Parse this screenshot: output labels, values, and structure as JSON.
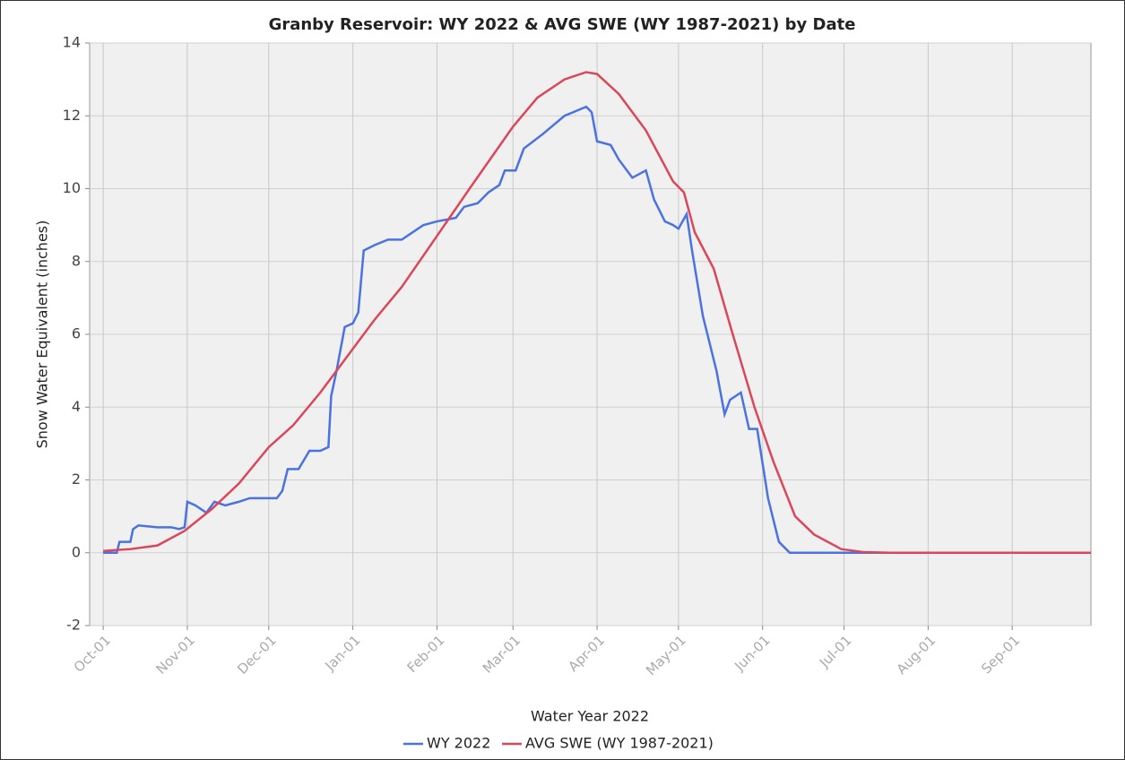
{
  "chart_data": {
    "type": "line",
    "title": "Granby Reservoir: WY 2022 & AVG SWE (WY 1987-2021) by Date",
    "xlabel": "Water Year 2022",
    "ylabel": "Snow Water Equivalent (inches)",
    "xlim": [
      -5,
      364
    ],
    "ylim": [
      -2,
      14
    ],
    "yticks": [
      -2,
      0,
      2,
      4,
      6,
      8,
      10,
      12,
      14
    ],
    "xticks": [
      {
        "value": 0,
        "label": "Oct-01"
      },
      {
        "value": 31,
        "label": "Nov-01"
      },
      {
        "value": 61,
        "label": "Dec-01"
      },
      {
        "value": 92,
        "label": "Jan-01"
      },
      {
        "value": 123,
        "label": "Feb-01"
      },
      {
        "value": 151,
        "label": "Mar-01"
      },
      {
        "value": 182,
        "label": "Apr-01"
      },
      {
        "value": 212,
        "label": "May-01"
      },
      {
        "value": 243,
        "label": "Jun-01"
      },
      {
        "value": 273,
        "label": "Jul-01"
      },
      {
        "value": 304,
        "label": "Aug-01"
      },
      {
        "value": 335,
        "label": "Sep-01"
      }
    ],
    "grid": true,
    "legend": "bottom",
    "series": [
      {
        "name": "WY 2022",
        "color": "#4a72e0",
        "x": [
          0,
          5,
          6,
          10,
          11,
          13,
          20,
          25,
          28,
          30,
          31,
          34,
          38,
          41,
          45,
          50,
          54,
          61,
          64,
          66,
          68,
          72,
          76,
          80,
          83,
          84,
          86,
          89,
          92,
          94,
          96,
          100,
          105,
          110,
          113,
          118,
          123,
          130,
          133,
          138,
          142,
          146,
          148,
          152,
          155,
          162,
          170,
          178,
          180,
          182,
          187,
          190,
          195,
          200,
          203,
          207,
          210,
          212,
          215,
          217,
          221,
          226,
          229,
          231,
          235,
          238,
          241,
          245,
          249,
          253,
          300,
          364
        ],
        "values": [
          0,
          0,
          0.3,
          0.3,
          0.65,
          0.75,
          0.7,
          0.7,
          0.65,
          0.7,
          1.4,
          1.3,
          1.1,
          1.4,
          1.3,
          1.4,
          1.5,
          1.5,
          1.5,
          1.7,
          2.3,
          2.3,
          2.8,
          2.8,
          2.9,
          4.3,
          5.0,
          6.2,
          6.3,
          6.6,
          8.3,
          8.45,
          8.6,
          8.6,
          8.75,
          9.0,
          9.1,
          9.2,
          9.5,
          9.6,
          9.9,
          10.1,
          10.5,
          10.5,
          11.1,
          11.5,
          12.0,
          12.25,
          12.1,
          11.3,
          11.2,
          10.8,
          10.3,
          10.5,
          9.7,
          9.1,
          9.0,
          8.9,
          9.3,
          8.3,
          6.5,
          5.0,
          3.8,
          4.2,
          4.4,
          3.4,
          3.4,
          1.5,
          0.3,
          0,
          0,
          0
        ]
      },
      {
        "name": "AVG SWE (WY 1987-2021)",
        "color": "#d9475a",
        "x": [
          0,
          10,
          20,
          30,
          40,
          50,
          61,
          70,
          80,
          92,
          100,
          110,
          123,
          135,
          151,
          160,
          170,
          178,
          182,
          190,
          200,
          210,
          214,
          218,
          225,
          232,
          240,
          247,
          255,
          262,
          272,
          280,
          290,
          364
        ],
        "values": [
          0.05,
          0.1,
          0.2,
          0.6,
          1.2,
          1.9,
          2.9,
          3.5,
          4.4,
          5.6,
          6.4,
          7.3,
          8.7,
          10.0,
          11.7,
          12.5,
          13.0,
          13.2,
          13.15,
          12.6,
          11.6,
          10.2,
          9.9,
          8.8,
          7.8,
          6.0,
          4.0,
          2.5,
          1.0,
          0.5,
          0.1,
          0.02,
          0,
          0
        ]
      }
    ]
  }
}
